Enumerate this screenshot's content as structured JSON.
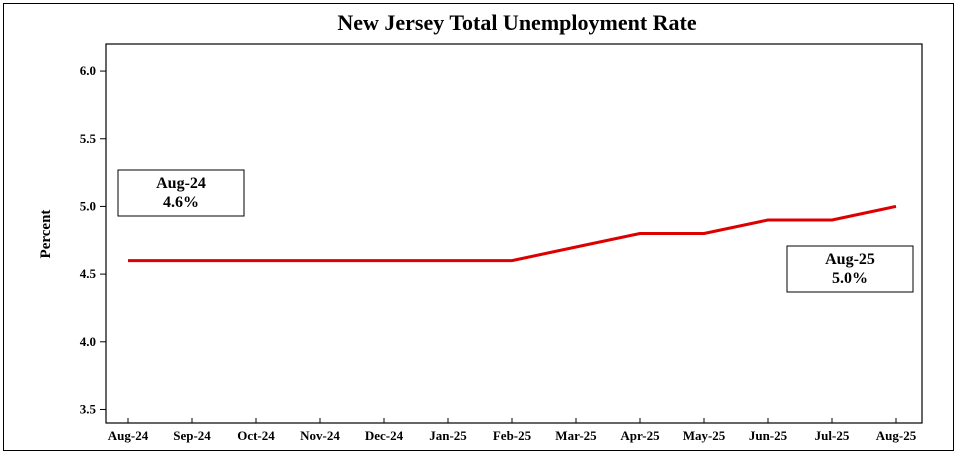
{
  "chart_data": {
    "type": "line",
    "title": "New Jersey Total Unemployment Rate",
    "xlabel": "",
    "ylabel": "Percent",
    "categories": [
      "Aug-24",
      "Sep-24",
      "Oct-24",
      "Nov-24",
      "Dec-24",
      "Jan-25",
      "Feb-25",
      "Mar-25",
      "Apr-25",
      "May-25",
      "Jun-25",
      "Jul-25",
      "Aug-25"
    ],
    "series": [
      {
        "values": [
          4.6,
          4.6,
          4.6,
          4.6,
          4.6,
          4.6,
          4.6,
          4.7,
          4.8,
          4.8,
          4.9,
          4.9,
          5.0
        ],
        "color": "#dd0000"
      }
    ],
    "ylim": [
      3.4,
      6.2
    ],
    "yticks": [
      "3.5",
      "4.0",
      "4.5",
      "5.0",
      "5.5",
      "6.0"
    ],
    "grid": false,
    "annotations": [
      {
        "line1": "Aug-24",
        "line2": "4.6%"
      },
      {
        "line1": "Aug-25",
        "line2": "5.0%"
      }
    ]
  }
}
